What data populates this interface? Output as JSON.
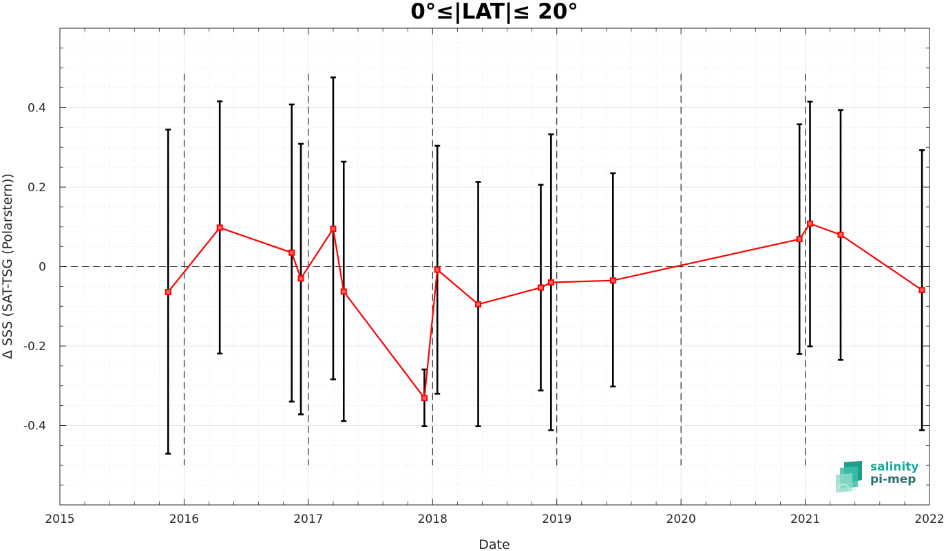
{
  "chart_data": {
    "type": "line",
    "title": "0°≤|LAT|≤ 20°",
    "xlabel": "Date",
    "ylabel": "Δ SSS (SAT-TSG (Polarstern))",
    "xlim": [
      2015,
      2022
    ],
    "ylim": [
      -0.6,
      0.6
    ],
    "x_ticks": [
      "2015",
      "2016",
      "2017",
      "2018",
      "2019",
      "2020",
      "2021",
      "2022"
    ],
    "y_ticks": [
      "-0.4",
      "-0.2",
      "0",
      "0.2",
      "0.4"
    ],
    "grid": true,
    "zero_line": 0,
    "year_boundary_lines": [
      2016,
      2017,
      2018,
      2019,
      2020,
      2021
    ],
    "series": [
      {
        "color": "#ff0000",
        "error_bar_color": "#000000",
        "points": [
          {
            "date": "2015-11-15",
            "value": -0.064,
            "low": -0.471,
            "high": 0.345
          },
          {
            "date": "2016-04-15",
            "value": 0.098,
            "low": -0.219,
            "high": 0.416
          },
          {
            "date": "2016-11-13",
            "value": 0.035,
            "low": -0.34,
            "high": 0.408
          },
          {
            "date": "2016-12-10",
            "value": -0.03,
            "low": -0.372,
            "high": 0.309
          },
          {
            "date": "2017-03-15",
            "value": 0.095,
            "low": -0.284,
            "high": 0.476
          },
          {
            "date": "2017-04-15",
            "value": -0.063,
            "low": -0.389,
            "high": 0.264
          },
          {
            "date": "2017-12-08",
            "value": -0.331,
            "low": -0.402,
            "high": -0.259
          },
          {
            "date": "2018-01-15",
            "value": -0.008,
            "low": -0.32,
            "high": 0.304
          },
          {
            "date": "2018-05-15",
            "value": -0.095,
            "low": -0.402,
            "high": 0.213
          },
          {
            "date": "2018-11-15",
            "value": -0.053,
            "low": -0.312,
            "high": 0.206
          },
          {
            "date": "2018-12-15",
            "value": -0.04,
            "low": -0.412,
            "high": 0.333
          },
          {
            "date": "2019-06-15",
            "value": -0.035,
            "low": -0.302,
            "high": 0.235
          },
          {
            "date": "2020-12-15",
            "value": 0.069,
            "low": -0.22,
            "high": 0.358
          },
          {
            "date": "2021-01-15",
            "value": 0.108,
            "low": -0.201,
            "high": 0.415
          },
          {
            "date": "2021-04-15",
            "value": 0.08,
            "low": -0.235,
            "high": 0.394
          },
          {
            "date": "2021-12-10",
            "value": -0.059,
            "low": -0.412,
            "high": 0.293
          }
        ]
      }
    ]
  },
  "logo": {
    "line1": "salinity",
    "line2": "pi-mep",
    "colors": [
      "#19a89b",
      "#2b6e6e"
    ]
  }
}
